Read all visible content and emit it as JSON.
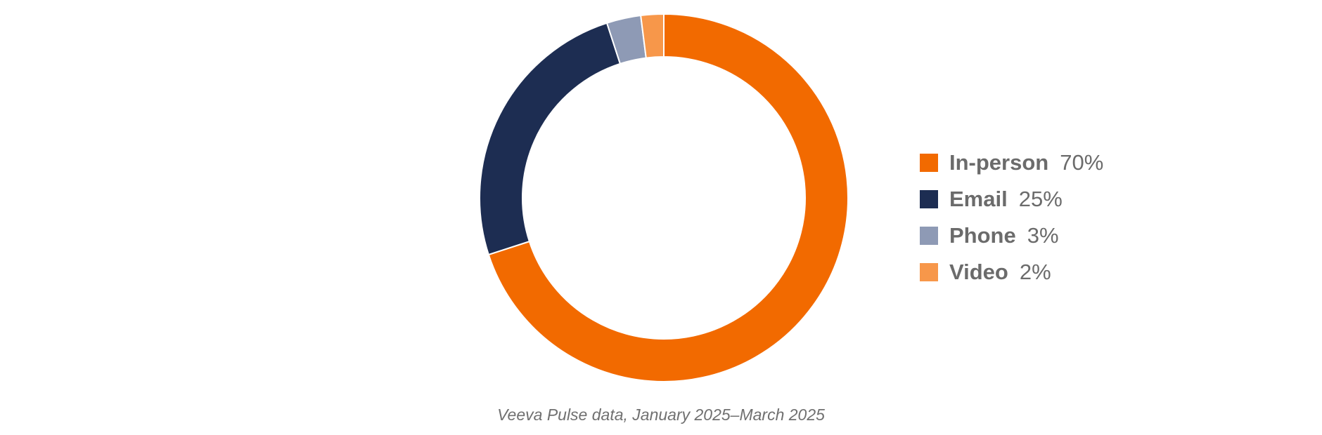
{
  "chart_data": {
    "type": "pie",
    "variant": "donut",
    "categories": [
      "In-person",
      "Email",
      "Phone",
      "Video"
    ],
    "values": [
      70,
      25,
      3,
      2
    ],
    "value_labels": [
      "70%",
      "25%",
      "3%",
      "2%"
    ],
    "colors": [
      "#f26a00",
      "#1d2d52",
      "#8e9ab5",
      "#f7974a"
    ],
    "legend_placement": "right",
    "start_angle": "12 o'clock",
    "direction": "clockwise",
    "caption": "Veeva Pulse data, January 2025–March 2025"
  }
}
